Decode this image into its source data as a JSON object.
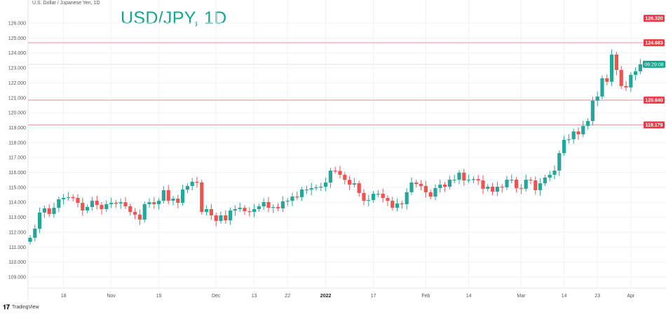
{
  "header": {
    "symbol": "U.S. Dollar / Japanese Yen, 1D",
    "title": "USD/JPY, 1D"
  },
  "footer": {
    "brand": "TradingView"
  },
  "colors": {
    "up": "#26a69a",
    "down": "#ef5350",
    "level_line": "#f2a5b4",
    "level_label": "#f23645",
    "countdown_label": "#14a58c",
    "title": "#14a58c"
  },
  "chart_data": {
    "type": "candlestick",
    "ylim": [
      108.3,
      126.4
    ],
    "y_ticks": [
      "126.000",
      "125.000",
      "124.000",
      "123.000",
      "122.000",
      "121.000",
      "120.000",
      "119.000",
      "118.000",
      "117.000",
      "116.000",
      "115.000",
      "114.000",
      "113.000",
      "112.000",
      "111.000",
      "110.000",
      "109.000"
    ],
    "x_ticks": [
      {
        "label": "18",
        "bar": 7
      },
      {
        "label": "Nov",
        "bar": 17
      },
      {
        "label": "15",
        "bar": 27
      },
      {
        "label": "Dec",
        "bar": 39
      },
      {
        "label": "13",
        "bar": 47
      },
      {
        "label": "22",
        "bar": 54
      },
      {
        "label": "2022",
        "bar": 62,
        "bold": true
      },
      {
        "label": "17",
        "bar": 72
      },
      {
        "label": "Feb",
        "bar": 83
      },
      {
        "label": "14",
        "bar": 92
      },
      {
        "label": "Mar",
        "bar": 103
      },
      {
        "label": "14",
        "bar": 112
      },
      {
        "label": "23",
        "bar": 119
      },
      {
        "label": "Apr",
        "bar": 126
      }
    ],
    "first_open": 111.35,
    "closes": [
      111.62,
      112.23,
      113.31,
      113.59,
      113.21,
      113.63,
      114.2,
      114.29,
      114.34,
      114.29,
      113.96,
      113.45,
      113.68,
      114.1,
      113.82,
      113.54,
      113.87,
      113.96,
      113.92,
      114.0,
      113.73,
      113.35,
      113.17,
      112.84,
      113.87,
      114.0,
      113.87,
      114.1,
      114.81,
      114.1,
      114.24,
      113.96,
      114.85,
      115.09,
      115.37,
      115.33,
      113.35,
      113.54,
      113.12,
      112.75,
      113.12,
      112.79,
      113.45,
      113.54,
      113.63,
      113.4,
      113.35,
      113.54,
      113.73,
      114.01,
      113.63,
      113.68,
      113.59,
      114.06,
      114.1,
      114.38,
      114.34,
      114.85,
      114.85,
      114.95,
      115.0,
      115.04,
      115.32,
      116.12,
      116.1,
      115.84,
      115.5,
      115.18,
      115.27,
      114.62,
      114.1,
      114.15,
      114.57,
      114.57,
      114.29,
      114.1,
      113.63,
      113.92,
      113.87,
      114.67,
      115.32,
      115.23,
      115.09,
      114.67,
      114.38,
      114.95,
      115.18,
      115.04,
      115.51,
      115.51,
      115.98,
      115.46,
      115.51,
      115.55,
      115.46,
      114.9,
      115.04,
      114.71,
      115.04,
      115.0,
      115.51,
      115.51,
      114.95,
      114.9,
      115.51,
      115.46,
      114.81,
      115.27,
      115.65,
      115.84,
      116.12,
      117.29,
      118.18,
      118.22,
      118.74,
      118.55,
      119.11,
      119.44,
      120.8,
      121.08,
      122.3,
      122.07,
      123.89,
      122.86,
      121.78,
      121.69,
      122.53,
      122.77,
      123.24
    ],
    "levels": [
      {
        "price": 126.32,
        "label": "126.320",
        "line": false
      },
      {
        "price": 124.683,
        "label": "124.683",
        "line": true
      },
      {
        "price": 120.84,
        "label": "120.840",
        "line": true
      },
      {
        "price": 119.179,
        "label": "119.179",
        "line": true
      }
    ],
    "last_price": 123.24,
    "countdown": "06:29:08",
    "grid": true,
    "price_axis": "left"
  }
}
